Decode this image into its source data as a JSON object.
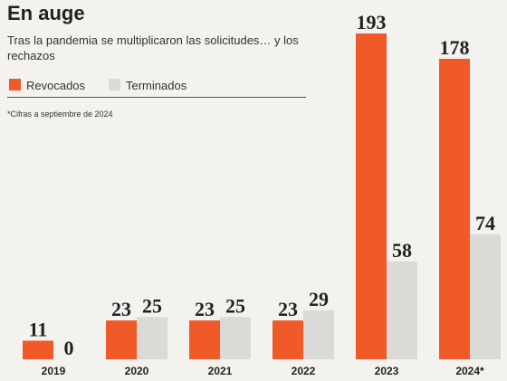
{
  "chart_data": {
    "type": "bar",
    "title": "En auge",
    "subtitle": "Tras la pandemia se multiplicaron las solicitudes… y los rechazos",
    "note": "*Cifras a septiembre de 2024",
    "categories": [
      "2019",
      "2020",
      "2021",
      "2022",
      "2023",
      "2024*"
    ],
    "series": [
      {
        "name": "Revocados",
        "color": "#f05a28",
        "values": [
          11,
          23,
          23,
          23,
          193,
          178
        ]
      },
      {
        "name": "Terminados",
        "color": "#dcdad6",
        "values": [
          0,
          25,
          25,
          29,
          58,
          74
        ]
      }
    ]
  }
}
